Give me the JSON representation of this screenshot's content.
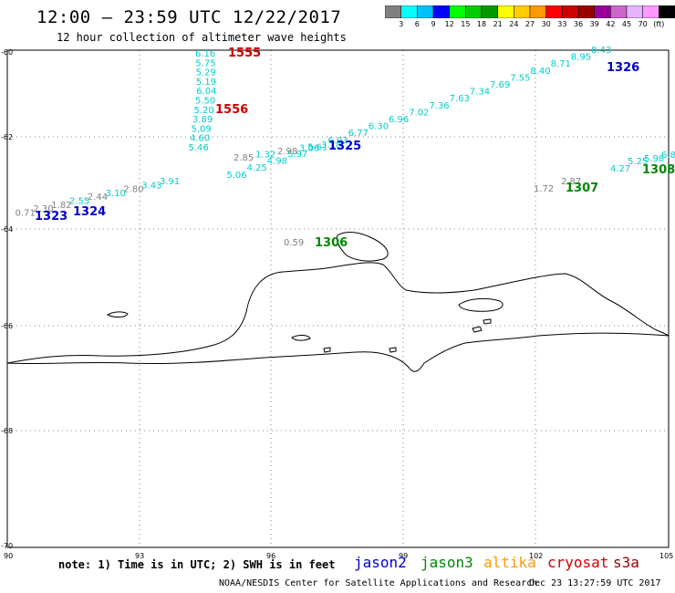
{
  "header": {
    "title": "12:00 – 23:59 UTC 12/22/2017",
    "subtitle": "12 hour collection of altimeter wave heights"
  },
  "colorbar": {
    "colors": [
      "#808080",
      "#00ffff",
      "#00bfff",
      "#0000ff",
      "#00ff00",
      "#00cc00",
      "#009900",
      "#ffff00",
      "#ffcc00",
      "#ff9900",
      "#ff0000",
      "#cc0000",
      "#990000",
      "#990099",
      "#cc66cc",
      "#e5b3ff",
      "#ff99ff",
      "#000000"
    ],
    "labels": [
      "3",
      "6",
      "9",
      "12",
      "15",
      "18",
      "21",
      "24",
      "27",
      "30",
      "33",
      "36",
      "39",
      "42",
      "45",
      "70",
      "(ft)"
    ]
  },
  "axes": {
    "lat_labels": [
      "-60",
      "-62",
      "-64",
      "-66",
      "-68",
      "-70"
    ],
    "lon_labels": [
      "90",
      "93",
      "96",
      "99",
      "102",
      "105"
    ]
  },
  "satellites": {
    "jason2": {
      "label": "jason2",
      "color": "#0000cc"
    },
    "jason3": {
      "label": "jason3",
      "color": "#008800"
    },
    "altika": {
      "label": "altika",
      "color": "#ff9900"
    },
    "cryosat": {
      "label": "cryosat",
      "color": "#cc0000"
    },
    "s3a": {
      "label": "s3a",
      "color": "#990000"
    }
  },
  "footer": {
    "note": "note: 1) Time is in UTC; 2) SWH is in feet",
    "credit": "NOAA/NESDIS Center for Satellite Applications and Research",
    "generated": "Dec 23 13:27:59 UTC 2017"
  },
  "tracks": [
    {
      "id": "1555",
      "time_label": "1555",
      "satellite": "cryosat",
      "label_color": "#cc0000",
      "values": [
        "6.16",
        "5.75",
        "5.29",
        "5.19",
        "6.04",
        "5.50",
        "5.20",
        "3.89",
        "5.09",
        "4.60",
        "5.46"
      ]
    },
    {
      "id": "1556",
      "time_label": "1556",
      "satellite": "cryosat",
      "label_color": "#cc0000",
      "values": []
    },
    {
      "id": "1326",
      "time_label": "1326",
      "satellite": "jason2",
      "label_color": "#0000cc",
      "values": [
        "8.43",
        "8.95",
        "8.71",
        "8.40",
        "7.55",
        "7.69",
        "7.34",
        "7.63",
        "7.36",
        "7.02",
        "6.96",
        "6.30",
        "6.77",
        "6.03",
        "5.61",
        "5.97",
        "4.98",
        "4.25",
        "5.06"
      ]
    },
    {
      "id": "1325",
      "time_label": "1325",
      "satellite": "jason2",
      "label_color": "#0000cc",
      "values": [
        "3.18",
        "3.06",
        "2.98",
        "1.32",
        "2.85"
      ]
    },
    {
      "id": "1324",
      "time_label": "1324",
      "satellite": "jason2",
      "label_color": "#0000cc",
      "values": [
        "3.91",
        "3.43",
        "2.80",
        "3.10",
        "2.44",
        "2.55",
        "1.82",
        "2.30",
        "0.71"
      ]
    },
    {
      "id": "1323",
      "time_label": "1323",
      "satellite": "jason2",
      "label_color": "#0000cc",
      "values": []
    },
    {
      "id": "1306",
      "time_label": "1306",
      "satellite": "jason3",
      "label_color": "#008800",
      "values": [
        "0.59"
      ]
    },
    {
      "id": "1307",
      "time_label": "1307",
      "satellite": "jason3",
      "label_color": "#008800",
      "values": [
        "2.87",
        "1.72"
      ]
    },
    {
      "id": "1308",
      "time_label": "1308",
      "satellite": "jason3",
      "label_color": "#008800",
      "values": [
        "6.8",
        "5.98",
        "5.25",
        "4.27"
      ]
    }
  ]
}
